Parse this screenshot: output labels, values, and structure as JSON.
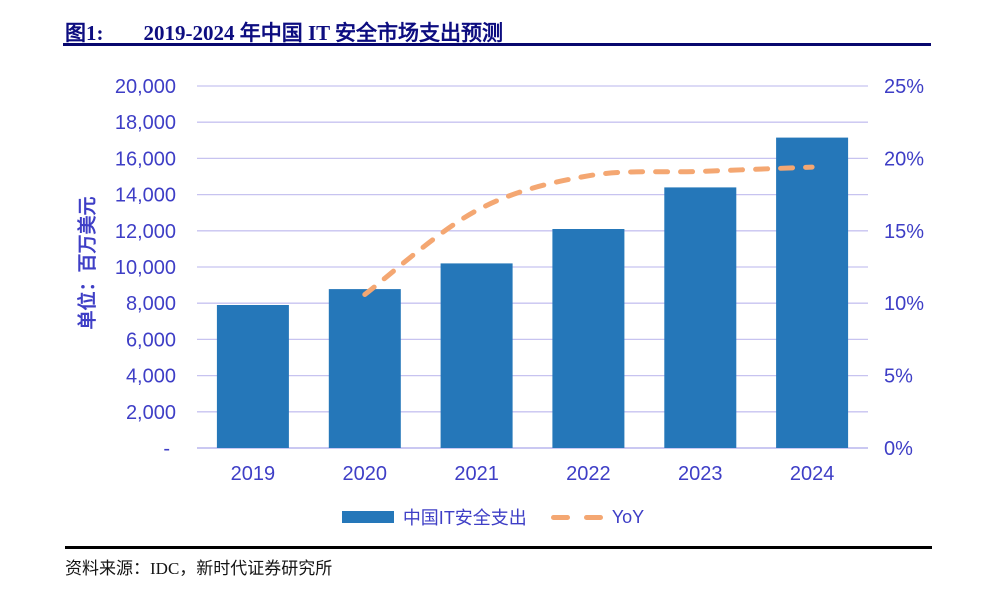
{
  "header": {
    "figure_label": "图1:",
    "title": "2019-2024 年中国 IT 安全市场支出预测"
  },
  "chart_data": {
    "type": "bar",
    "title": "2019-2024 年中国 IT 安全市场支出预测",
    "categories": [
      "2019",
      "2020",
      "2021",
      "2022",
      "2023",
      "2024"
    ],
    "series": [
      {
        "name": "中国IT安全支出",
        "type": "bar",
        "axis": "left",
        "unit": "百万美元",
        "values": [
          7900,
          8780,
          10200,
          12100,
          14400,
          17150
        ]
      },
      {
        "name": "YoY",
        "type": "line",
        "axis": "right",
        "unit": "%",
        "values": [
          null,
          10.6,
          16.4,
          18.8,
          19.1,
          19.4
        ]
      }
    ],
    "left_axis": {
      "title": "单位：百万美元",
      "min": 0,
      "max": 20000,
      "step": 2000,
      "tick_labels": [
        "-",
        "2,000",
        "4,000",
        "6,000",
        "8,000",
        "10,000",
        "12,000",
        "14,000",
        "16,000",
        "18,000",
        "20,000"
      ]
    },
    "right_axis": {
      "min": 0,
      "max": 25,
      "step": 5,
      "tick_labels": [
        "0%",
        "5%",
        "10%",
        "15%",
        "20%",
        "25%"
      ]
    },
    "grid": true,
    "legend_position": "bottom",
    "colors": {
      "bar": "#2577B9",
      "line": "#F4A772",
      "axis_text": "#3E3EC6",
      "gridline": "#C7C3F0",
      "baseline": "#B9B5EE",
      "title": "#0D0D80"
    }
  },
  "legend": {
    "bars": "中国IT安全支出",
    "line": "YoY"
  },
  "footer": {
    "source": "资料来源：IDC，新时代证券研究所"
  }
}
